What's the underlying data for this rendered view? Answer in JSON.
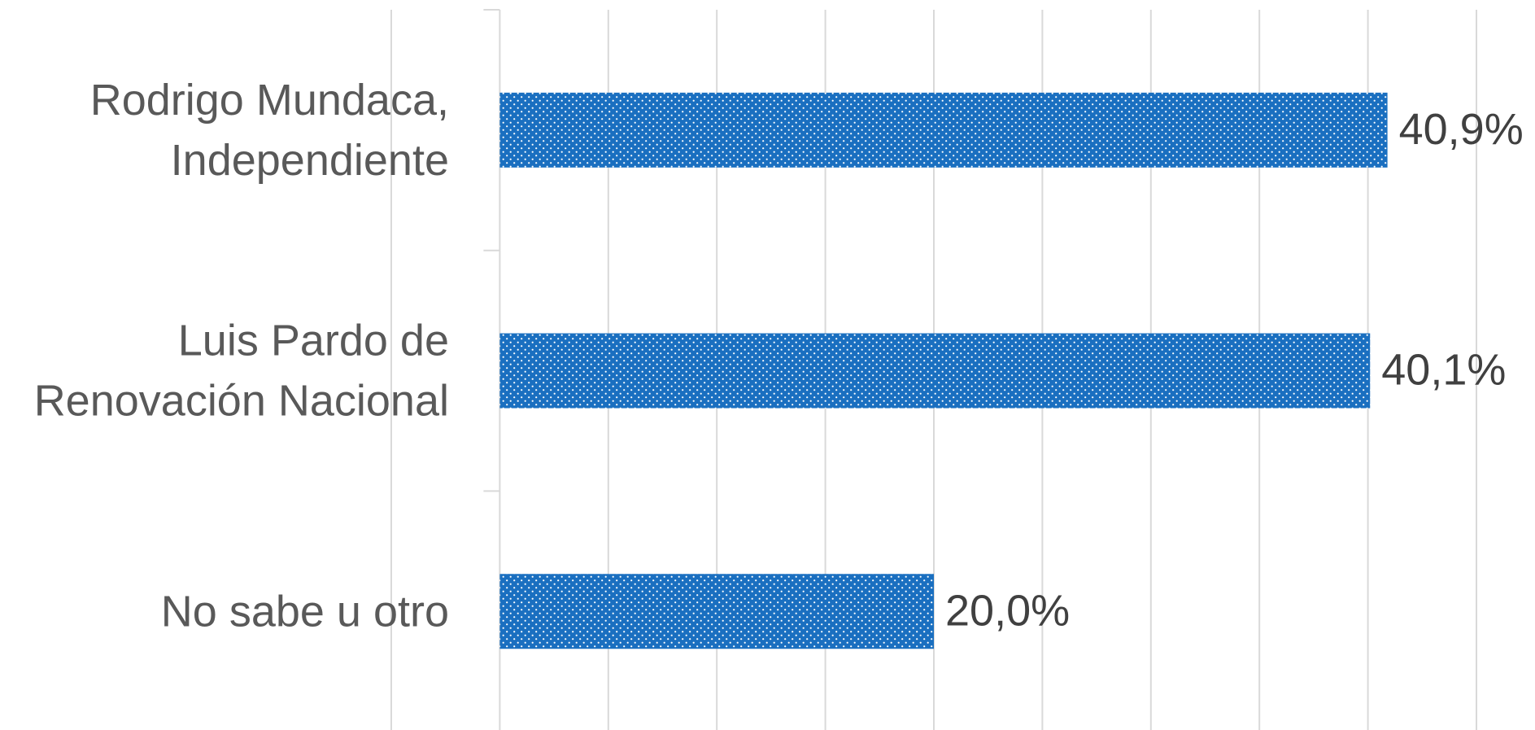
{
  "chart_data": {
    "type": "bar",
    "orientation": "horizontal",
    "categories": [
      [
        "Rodrigo Mundaca,",
        "Independiente"
      ],
      [
        "Luis Pardo de",
        "Renovación Nacional"
      ],
      [
        "No sabe u otro"
      ]
    ],
    "values": [
      40.9,
      40.1,
      20.0
    ],
    "data_labels": [
      "40,9%",
      "40,1%",
      "20,0%"
    ],
    "xlim": [
      -5,
      45
    ],
    "x_grid_step": 5,
    "grid": true,
    "legend": "none",
    "bar_color": "#1a6fc0",
    "bar_pattern": "dotted",
    "gridline_color": "#d9d9d9",
    "text_color": "#595959",
    "value_label_color": "#404040"
  }
}
